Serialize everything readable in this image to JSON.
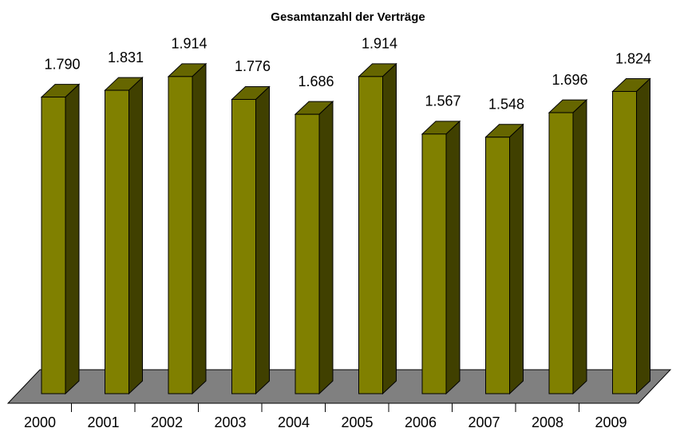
{
  "chart_data": {
    "type": "bar3d",
    "title": "Gesamtanzahl der Verträge",
    "categories": [
      "2000",
      "2001",
      "2002",
      "2003",
      "2004",
      "2005",
      "2006",
      "2007",
      "2008",
      "2009"
    ],
    "values": [
      1790,
      1831,
      1914,
      1776,
      1686,
      1914,
      1567,
      1548,
      1696,
      1824
    ],
    "value_labels": [
      "1.790",
      "1.831",
      "1.914",
      "1.776",
      "1.686",
      "1.914",
      "1.567",
      "1.548",
      "1.696",
      "1.824"
    ],
    "color": "#808000"
  }
}
